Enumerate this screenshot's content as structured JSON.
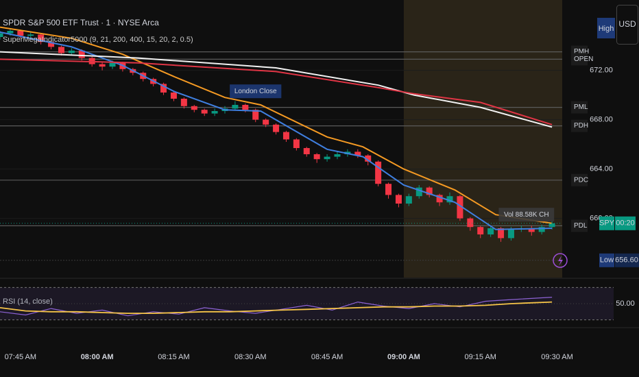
{
  "header": {
    "title": "SPDR S&P 500 ETF Trust · 1 · NYSE Arca",
    "indicator": "SuperMegaIndicator5000 (9, 21, 200, 400, 15, 20, 2, 0.5)",
    "buttons": [
      "High",
      "USD"
    ]
  },
  "chart_data": [
    {
      "type": "candlestick",
      "up_color": "#089981",
      "down_color": "#f23645",
      "xlim": [
        "07:41",
        "09:31"
      ],
      "xticks": [
        {
          "value": "07:45",
          "label": "07:45 AM"
        },
        {
          "value": "08:00",
          "label": "08:00 AM"
        },
        {
          "value": "08:15",
          "label": "08:15 AM"
        },
        {
          "value": "08:30",
          "label": "08:30 AM"
        },
        {
          "value": "08:45",
          "label": "08:45 AM"
        },
        {
          "value": "09:00",
          "label": "09:00 AM"
        },
        {
          "value": "09:15",
          "label": "09:15 AM"
        },
        {
          "value": "09:30",
          "label": "09:30 AM"
        }
      ],
      "ylim": [
        655.2,
        677.7
      ],
      "yticks": [
        {
          "value": 660,
          "label": "660.00"
        },
        {
          "value": 664,
          "label": "664.00"
        },
        {
          "value": 668,
          "label": "668.00"
        },
        {
          "value": 672,
          "label": "672.00"
        }
      ],
      "highlight_from": "09:00",
      "x": [
        "07:41",
        "07:43",
        "07:45",
        "07:47",
        "07:49",
        "07:51",
        "07:53",
        "07:55",
        "07:57",
        "07:59",
        "08:01",
        "08:03",
        "08:05",
        "08:07",
        "08:09",
        "08:11",
        "08:13",
        "08:15",
        "08:17",
        "08:19",
        "08:21",
        "08:23",
        "08:25",
        "08:27",
        "08:29",
        "08:31",
        "08:33",
        "08:35",
        "08:37",
        "08:39",
        "08:41",
        "08:43",
        "08:45",
        "08:47",
        "08:49",
        "08:51",
        "08:53",
        "08:55",
        "08:57",
        "08:59",
        "09:01",
        "09:03",
        "09:05",
        "09:07",
        "09:09",
        "09:11",
        "09:13",
        "09:15",
        "09:17",
        "09:19",
        "09:21",
        "09:23",
        "09:25",
        "09:27",
        "09:29"
      ],
      "open": [
        674.7,
        675.0,
        675.2,
        674.8,
        674.9,
        674.3,
        673.9,
        673.4,
        673.6,
        673.0,
        672.5,
        672.3,
        672.6,
        672.1,
        671.8,
        671.3,
        670.9,
        670.2,
        669.7,
        669.1,
        668.8,
        668.5,
        668.7,
        668.9,
        669.2,
        668.8,
        668.0,
        667.6,
        667.0,
        666.4,
        665.7,
        665.2,
        664.8,
        665.0,
        665.2,
        665.4,
        665.1,
        664.6,
        662.8,
        661.9,
        661.2,
        661.8,
        662.5,
        661.9,
        661.3,
        661.8,
        660.0,
        659.3,
        658.7,
        659.2,
        658.4,
        659.1,
        659.2,
        658.9,
        659.3
      ],
      "high": [
        675.2,
        675.4,
        675.3,
        675.1,
        675.0,
        674.5,
        674.0,
        673.8,
        673.7,
        673.1,
        672.7,
        672.8,
        672.7,
        672.2,
        671.9,
        671.4,
        671.0,
        670.3,
        669.8,
        669.2,
        668.9,
        668.9,
        669.1,
        669.5,
        669.3,
        668.9,
        668.1,
        667.7,
        667.1,
        666.5,
        665.8,
        665.3,
        665.2,
        665.4,
        665.6,
        665.6,
        665.2,
        664.7,
        662.9,
        662.0,
        662.0,
        662.7,
        662.6,
        662.0,
        662.1,
        661.9,
        660.1,
        659.4,
        659.4,
        659.3,
        659.3,
        659.4,
        659.4,
        659.5,
        659.8
      ],
      "low": [
        674.5,
        674.8,
        674.6,
        674.6,
        674.1,
        673.7,
        673.2,
        673.2,
        672.8,
        672.3,
        672.0,
        672.1,
        671.9,
        671.6,
        671.1,
        670.7,
        670.0,
        669.5,
        668.9,
        668.6,
        668.3,
        668.3,
        668.5,
        668.8,
        668.6,
        667.8,
        667.4,
        666.8,
        666.2,
        665.5,
        665.0,
        664.5,
        664.6,
        664.8,
        665.0,
        664.9,
        664.3,
        662.6,
        661.6,
        660.9,
        661.0,
        661.6,
        661.7,
        661.0,
        661.1,
        659.8,
        659.0,
        658.4,
        658.5,
        658.1,
        658.2,
        658.9,
        658.6,
        658.7,
        659.1
      ],
      "close": [
        675.0,
        675.2,
        674.8,
        674.9,
        674.3,
        673.9,
        673.4,
        673.6,
        673.0,
        672.5,
        672.3,
        672.6,
        672.1,
        671.8,
        671.3,
        670.9,
        670.2,
        669.7,
        669.1,
        668.8,
        668.5,
        668.7,
        668.9,
        669.2,
        668.8,
        668.0,
        667.6,
        667.0,
        666.4,
        665.7,
        665.2,
        664.8,
        665.0,
        665.2,
        665.4,
        665.1,
        664.6,
        662.8,
        661.9,
        661.2,
        661.8,
        662.5,
        661.9,
        661.3,
        661.8,
        660.0,
        659.3,
        658.7,
        659.2,
        658.4,
        659.1,
        659.2,
        658.9,
        659.3,
        659.6
      ],
      "series": [
        {
          "color": "#3f7fe0",
          "x": [
            "07:41",
            "07:55",
            "08:05",
            "08:15",
            "08:25",
            "08:32",
            "08:45",
            "08:52",
            "09:00",
            "09:10",
            "09:18",
            "09:29"
          ],
          "values": [
            675.1,
            673.9,
            672.4,
            670.3,
            668.8,
            668.7,
            665.6,
            665.0,
            662.7,
            661.3,
            659.1,
            659.2
          ]
        },
        {
          "color": "#f59a23",
          "x": [
            "07:41",
            "07:55",
            "08:05",
            "08:15",
            "08:25",
            "08:32",
            "08:45",
            "08:52",
            "09:00",
            "09:10",
            "09:18",
            "09:29"
          ],
          "values": [
            675.5,
            674.6,
            673.3,
            671.5,
            669.8,
            669.2,
            666.6,
            665.8,
            664.0,
            662.3,
            660.3,
            659.6
          ]
        },
        {
          "color": "#f2f2f2",
          "x": [
            "07:41",
            "08:08",
            "08:35",
            "08:55",
            "09:02",
            "09:15",
            "09:29"
          ],
          "values": [
            673.5,
            673.0,
            672.2,
            670.8,
            670.0,
            669.0,
            667.4
          ]
        },
        {
          "color": "#e03545",
          "x": [
            "07:41",
            "08:08",
            "08:35",
            "08:55",
            "09:02",
            "09:15",
            "09:29"
          ],
          "values": [
            672.9,
            672.6,
            671.9,
            670.6,
            670.1,
            669.4,
            667.6
          ]
        }
      ],
      "levels": [
        {
          "label": "PMH",
          "value": 673.5
        },
        {
          "label": "OPEN",
          "value": 672.9
        },
        {
          "label": "PML",
          "value": 669.0
        },
        {
          "label": "PDH",
          "value": 667.5
        },
        {
          "label": "PDC",
          "value": 663.1
        },
        {
          "label": "PDL",
          "value": 659.4
        }
      ],
      "annotations": [
        {
          "text": "London Close",
          "x": "08:31",
          "y": 670.3
        },
        {
          "text": "Vol 88.58K CH",
          "x": "09:24",
          "y": 660.3
        }
      ],
      "current_tag": {
        "symbol": "SPY",
        "countdown": "00:20"
      },
      "low_tag": {
        "label": "Low",
        "value": 656.6,
        "value_label": "656.60"
      }
    },
    {
      "type": "line",
      "title": "RSI (14, close)",
      "ylim": [
        22,
        78
      ],
      "yticks": [
        {
          "value": 50,
          "label": "50.00"
        }
      ],
      "bands": [
        30,
        70
      ],
      "series": [
        {
          "color": "#8e63d6",
          "x": [
            "07:41",
            "07:46",
            "07:51",
            "07:56",
            "08:01",
            "08:06",
            "08:11",
            "08:16",
            "08:21",
            "08:26",
            "08:31",
            "08:36",
            "08:41",
            "08:46",
            "08:51",
            "08:56",
            "09:01",
            "09:06",
            "09:11",
            "09:16",
            "09:21",
            "09:29"
          ],
          "values": [
            40,
            36,
            44,
            38,
            42,
            35,
            40,
            37,
            45,
            41,
            38,
            43,
            48,
            42,
            52,
            47,
            44,
            50,
            46,
            53,
            55,
            58
          ]
        },
        {
          "color": "#f7c548",
          "x": [
            "07:41",
            "07:46",
            "07:51",
            "07:56",
            "08:01",
            "08:06",
            "08:11",
            "08:16",
            "08:21",
            "08:26",
            "08:31",
            "08:36",
            "08:41",
            "08:46",
            "08:51",
            "08:56",
            "09:01",
            "09:06",
            "09:11",
            "09:16",
            "09:21",
            "09:29"
          ],
          "values": [
            45,
            41,
            40,
            40,
            39,
            38,
            38,
            39,
            40,
            40,
            41,
            42,
            43,
            44,
            45,
            46,
            46,
            47,
            47,
            48,
            50,
            52
          ]
        }
      ]
    }
  ]
}
